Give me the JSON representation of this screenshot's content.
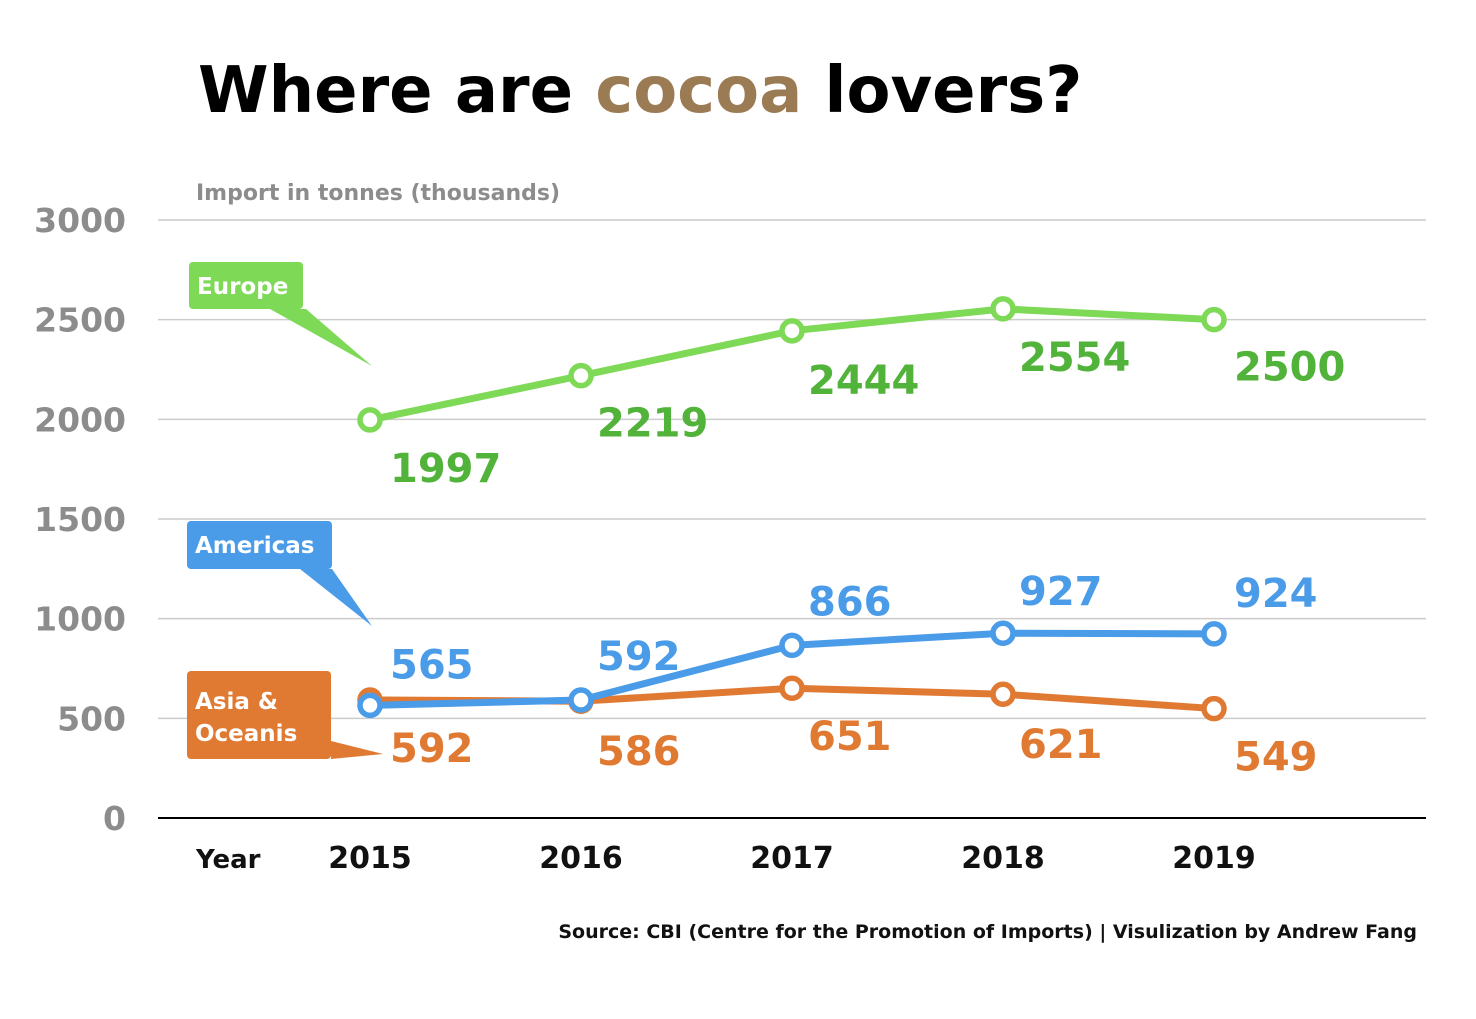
{
  "title": {
    "before": "Where are ",
    "highlight": "cocoa",
    "after": " lovers?"
  },
  "colors": {
    "highlight": "#9b7b53",
    "europe": "#7ed957",
    "europe_label": "#52b33a",
    "americas": "#4a9be8",
    "asia": "#e07a33",
    "grid": "#cccccc",
    "axis": "#000000",
    "muted": "#8c8c8c"
  },
  "source": "Source: CBI (Centre for the Promotion of Imports) | Visulization by Andrew Fang",
  "chart_data": {
    "type": "line",
    "title": "Where are cocoa lovers?",
    "ylabel": "Import in tonnes (thousands)",
    "xlabel": "Year",
    "x": [
      "2015",
      "2016",
      "2017",
      "2018",
      "2019"
    ],
    "ylim": [
      0,
      3000
    ],
    "yticks": [
      0,
      500,
      1000,
      1500,
      2000,
      2500,
      3000
    ],
    "grid": true,
    "series": [
      {
        "name": "Europe",
        "key": "europe",
        "values": [
          1997,
          2219,
          2444,
          2554,
          2500
        ]
      },
      {
        "name": "Americas",
        "key": "americas",
        "values": [
          565,
          592,
          866,
          927,
          924
        ]
      },
      {
        "name": "Asia & Oceanis",
        "key": "asia",
        "values": [
          592,
          586,
          651,
          621,
          549
        ]
      }
    ]
  }
}
